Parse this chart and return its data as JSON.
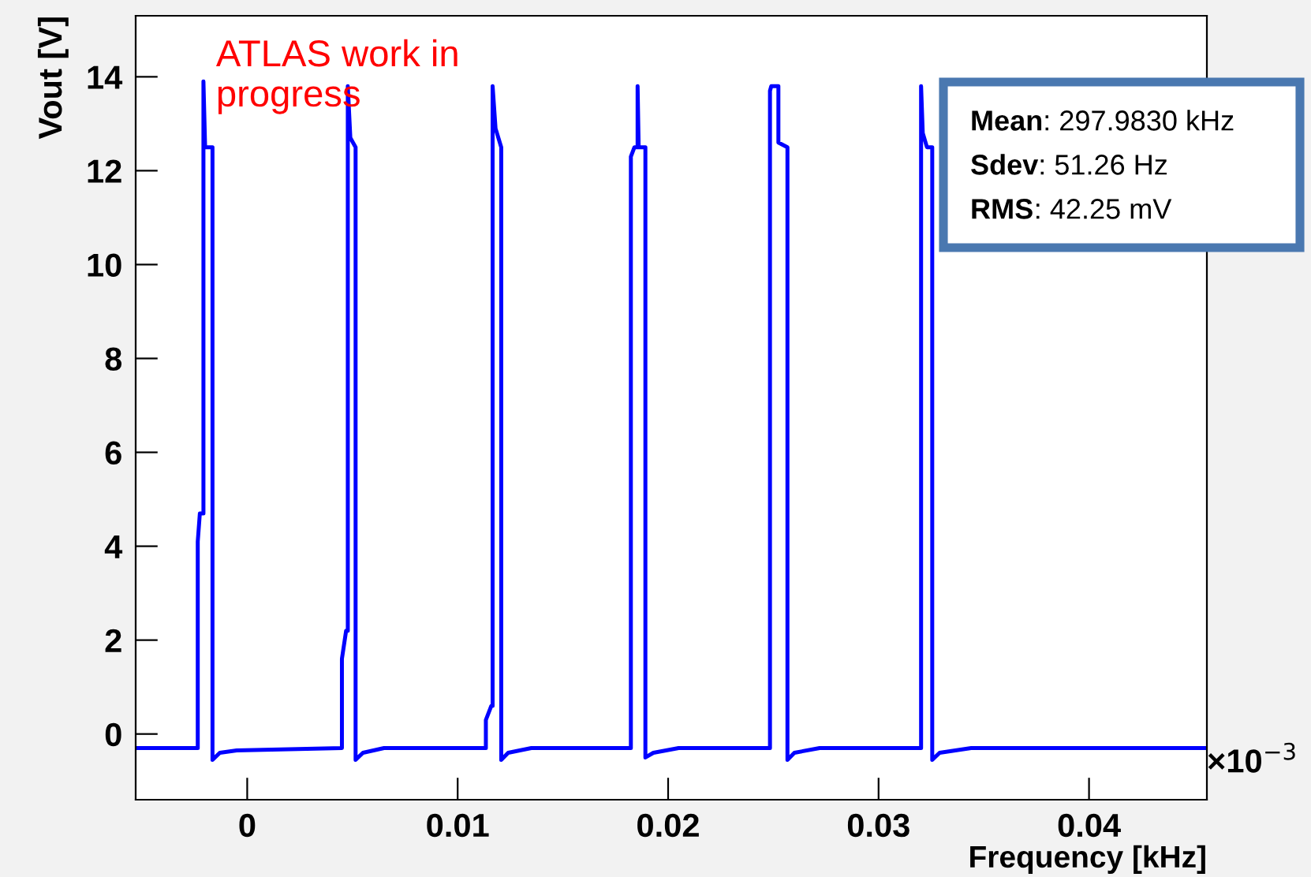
{
  "chart_data": {
    "type": "line",
    "xlabel": "Frequency [kHz]",
    "ylabel": "Vout [V]",
    "xlim": [
      -0.0053,
      0.0456
    ],
    "ylim": [
      -1.4,
      15.3
    ],
    "xticks": [
      0,
      0.01,
      0.02,
      0.03,
      0.04
    ],
    "yticks": [
      0,
      2,
      4,
      6,
      8,
      10,
      12,
      14
    ],
    "grid": false,
    "legend": false,
    "marker": "none",
    "line_style": "solid",
    "series": [
      {
        "color": "#0000ff",
        "x": [
          -0.0053,
          -0.00235,
          -0.00235,
          -0.00225,
          -0.00208,
          -0.00208,
          -0.002,
          -0.0019,
          -0.00165,
          -0.00165,
          -0.0013,
          -0.0005,
          0.0045,
          0.0045,
          0.0047,
          0.00478,
          0.00478,
          0.0049,
          0.00515,
          0.00515,
          0.0055,
          0.0065,
          0.01134,
          0.01134,
          0.0116,
          0.01166,
          0.01166,
          0.0118,
          0.01207,
          0.01207,
          0.0124,
          0.0135,
          0.01823,
          0.01823,
          0.0184,
          0.01855,
          0.01855,
          0.0186,
          0.01892,
          0.01892,
          0.0193,
          0.0205,
          0.02484,
          0.02484,
          0.0249,
          0.02524,
          0.02524,
          0.02567,
          0.02567,
          0.026,
          0.0272,
          0.03202,
          0.03202,
          0.0321,
          0.0323,
          0.03255,
          0.03255,
          0.0329,
          0.0344,
          0.0456
        ],
        "values": [
          -0.3,
          -0.3,
          4.1,
          4.7,
          4.7,
          13.9,
          12.5,
          12.5,
          12.5,
          -0.55,
          -0.4,
          -0.35,
          -0.3,
          1.6,
          2.2,
          2.2,
          13.8,
          12.7,
          12.5,
          -0.55,
          -0.4,
          -0.3,
          -0.3,
          0.3,
          0.6,
          0.6,
          13.8,
          12.9,
          12.5,
          -0.55,
          -0.4,
          -0.3,
          -0.3,
          12.3,
          12.5,
          12.5,
          13.8,
          12.5,
          12.5,
          -0.5,
          -0.4,
          -0.3,
          -0.3,
          13.7,
          13.8,
          13.8,
          12.6,
          12.5,
          -0.55,
          -0.4,
          -0.3,
          -0.3,
          13.8,
          12.8,
          12.5,
          12.5,
          -0.55,
          -0.4,
          -0.3,
          -0.3
        ]
      }
    ],
    "annotations": [
      "ATLAS work in\nprogress",
      "×10$^{−3}$",
      "Mean: 297.9830 kHz",
      "Sdev: 51.26 Hz",
      "RMS: 42.25 mV"
    ]
  }
}
